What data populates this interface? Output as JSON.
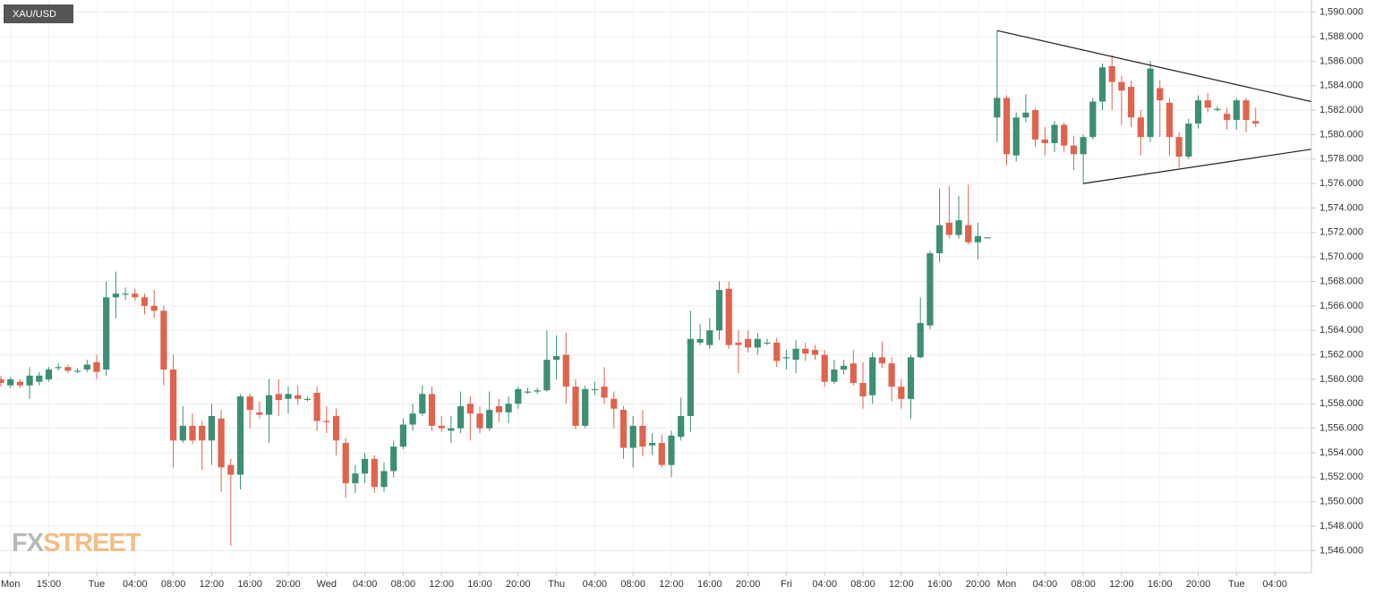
{
  "chart_data": {
    "type": "candlestick",
    "title": "XAU/USD",
    "watermark": [
      "FX",
      "STREET"
    ],
    "up_color": "#3c8f73",
    "down_color": "#e0634e",
    "grid": true,
    "ylim": [
      1544.2,
      1591
    ],
    "yticks": [
      {
        "value": 1546,
        "label": "1,546.000"
      },
      {
        "value": 1548,
        "label": "1,548.000"
      },
      {
        "value": 1550,
        "label": "1,550.000"
      },
      {
        "value": 1552,
        "label": "1,552.000"
      },
      {
        "value": 1554,
        "label": "1,554.000"
      },
      {
        "value": 1556,
        "label": "1,556.000"
      },
      {
        "value": 1558,
        "label": "1,558.000"
      },
      {
        "value": 1560,
        "label": "1,560.000"
      },
      {
        "value": 1562,
        "label": "1,562.000"
      },
      {
        "value": 1564,
        "label": "1,564.000"
      },
      {
        "value": 1566,
        "label": "1,566.000"
      },
      {
        "value": 1568,
        "label": "1,568.000"
      },
      {
        "value": 1570,
        "label": "1,570.000"
      },
      {
        "value": 1572,
        "label": "1,572.000"
      },
      {
        "value": 1574,
        "label": "1,574.000"
      },
      {
        "value": 1576,
        "label": "1,576.000"
      },
      {
        "value": 1578,
        "label": "1,578.000"
      },
      {
        "value": 1580,
        "label": "1,580.000"
      },
      {
        "value": 1582,
        "label": "1,582.000"
      },
      {
        "value": 1584,
        "label": "1,584.000"
      },
      {
        "value": 1586,
        "label": "1,586.000"
      },
      {
        "value": 1588,
        "label": "1,588.000"
      },
      {
        "value": 1590,
        "label": "1,590.000"
      }
    ],
    "categories": [
      null,
      "Mon",
      null,
      null,
      null,
      "15:00",
      null,
      null,
      null,
      null,
      "Tue",
      null,
      null,
      null,
      "04:00",
      null,
      null,
      null,
      "08:00",
      null,
      null,
      null,
      "12:00",
      null,
      null,
      null,
      "16:00",
      null,
      null,
      null,
      "20:00",
      null,
      null,
      null,
      "Wed",
      null,
      null,
      null,
      "04:00",
      null,
      null,
      null,
      "08:00",
      null,
      null,
      null,
      "12:00",
      null,
      null,
      null,
      "16:00",
      null,
      null,
      null,
      "20:00",
      null,
      null,
      null,
      "Thu",
      null,
      null,
      null,
      "04:00",
      null,
      null,
      null,
      "08:00",
      null,
      null,
      null,
      "12:00",
      null,
      null,
      null,
      "16:00",
      null,
      null,
      null,
      "20:00",
      null,
      null,
      null,
      "Fri",
      null,
      null,
      null,
      "04:00",
      null,
      null,
      null,
      "08:00",
      null,
      null,
      null,
      "12:00",
      null,
      null,
      null,
      "16:00",
      null,
      null,
      null,
      "20:00",
      null,
      null,
      "Mon",
      null,
      null,
      null,
      "04:00",
      null,
      null,
      null,
      "08:00",
      null,
      null,
      null,
      "12:00",
      null,
      null,
      null,
      "16:00",
      null,
      null,
      null,
      "20:00",
      null,
      null,
      null,
      "Tue",
      null,
      null,
      null,
      "04:00"
    ],
    "ohlc": [
      [
        1560.0,
        1560.3,
        1559.4,
        1559.7
      ],
      [
        1559.5,
        1560.2,
        1559.3,
        1560.0
      ],
      [
        1559.8,
        1560.0,
        1559.3,
        1559.5
      ],
      [
        1559.5,
        1561.0,
        1558.4,
        1560.3
      ],
      [
        1559.8,
        1560.6,
        1559.5,
        1560.3
      ],
      [
        1560.0,
        1561.0,
        1559.8,
        1560.8
      ],
      [
        1561.0,
        1561.3,
        1560.7,
        1561.0
      ],
      [
        1561.0,
        1561.2,
        1560.5,
        1560.7
      ],
      [
        1560.7,
        1560.9,
        1560.5,
        1560.7
      ],
      [
        1560.8,
        1561.6,
        1560.6,
        1561.2
      ],
      [
        1561.4,
        1562.0,
        1560.0,
        1560.6
      ],
      [
        1560.8,
        1568.0,
        1560.3,
        1566.7
      ],
      [
        1566.7,
        1568.8,
        1565.0,
        1567.0
      ],
      [
        1567.0,
        1567.5,
        1566.5,
        1567.0
      ],
      [
        1567.0,
        1567.4,
        1566.4,
        1566.7
      ],
      [
        1566.7,
        1567.0,
        1565.3,
        1566.0
      ],
      [
        1566.0,
        1567.3,
        1565.0,
        1565.6
      ],
      [
        1565.6,
        1566.0,
        1559.5,
        1560.8
      ],
      [
        1560.8,
        1562.0,
        1552.8,
        1555.0
      ],
      [
        1555.0,
        1557.8,
        1554.8,
        1556.2
      ],
      [
        1556.2,
        1557.2,
        1554.7,
        1555.0
      ],
      [
        1556.2,
        1556.6,
        1552.6,
        1555.0
      ],
      [
        1555.0,
        1558.0,
        1553.0,
        1557.0
      ],
      [
        1556.8,
        1557.5,
        1550.8,
        1552.8
      ],
      [
        1553.0,
        1553.5,
        1546.4,
        1552.2
      ],
      [
        1552.2,
        1558.8,
        1551.0,
        1558.6
      ],
      [
        1558.6,
        1558.8,
        1556.0,
        1557.5
      ],
      [
        1557.3,
        1558.2,
        1556.8,
        1557.1
      ],
      [
        1557.1,
        1560.0,
        1554.8,
        1558.7
      ],
      [
        1558.8,
        1560.0,
        1557.0,
        1558.3
      ],
      [
        1558.4,
        1559.4,
        1557.2,
        1558.8
      ],
      [
        1558.7,
        1559.5,
        1557.9,
        1558.4
      ],
      [
        1558.4,
        1558.6,
        1558.2,
        1558.4
      ],
      [
        1558.9,
        1559.4,
        1555.8,
        1556.6
      ],
      [
        1556.6,
        1557.8,
        1555.6,
        1556.5
      ],
      [
        1557.0,
        1557.6,
        1553.8,
        1555.0
      ],
      [
        1554.8,
        1555.2,
        1550.3,
        1551.5
      ],
      [
        1551.5,
        1553.0,
        1550.7,
        1552.3
      ],
      [
        1552.3,
        1554.0,
        1551.5,
        1553.5
      ],
      [
        1553.5,
        1553.8,
        1550.7,
        1551.2
      ],
      [
        1551.2,
        1553.2,
        1550.8,
        1552.5
      ],
      [
        1552.5,
        1555.0,
        1552.0,
        1554.5
      ],
      [
        1554.5,
        1556.8,
        1554.3,
        1556.3
      ],
      [
        1556.3,
        1558.0,
        1555.8,
        1557.2
      ],
      [
        1557.2,
        1559.5,
        1557.0,
        1558.8
      ],
      [
        1558.8,
        1559.4,
        1555.8,
        1556.2
      ],
      [
        1556.2,
        1557.0,
        1555.7,
        1556.0
      ],
      [
        1555.8,
        1557.0,
        1554.8,
        1556.0
      ],
      [
        1556.0,
        1559.0,
        1555.6,
        1557.8
      ],
      [
        1558.0,
        1558.6,
        1555.0,
        1557.2
      ],
      [
        1557.2,
        1557.8,
        1555.6,
        1556.0
      ],
      [
        1556.0,
        1559.0,
        1555.8,
        1557.5
      ],
      [
        1557.8,
        1558.4,
        1556.5,
        1557.3
      ],
      [
        1557.3,
        1558.6,
        1556.4,
        1558.0
      ],
      [
        1558.0,
        1559.4,
        1557.6,
        1559.2
      ],
      [
        1559.0,
        1559.3,
        1558.8,
        1559.0
      ],
      [
        1559.0,
        1559.3,
        1558.8,
        1559.1
      ],
      [
        1559.1,
        1564.0,
        1559.0,
        1561.6
      ],
      [
        1561.6,
        1563.6,
        1560.0,
        1561.9
      ],
      [
        1562.0,
        1563.8,
        1558.0,
        1559.4
      ],
      [
        1559.4,
        1560.0,
        1555.9,
        1556.2
      ],
      [
        1556.2,
        1559.5,
        1556.0,
        1559.2
      ],
      [
        1559.2,
        1559.8,
        1558.7,
        1559.2
      ],
      [
        1559.4,
        1561.0,
        1558.0,
        1558.5
      ],
      [
        1558.4,
        1559.0,
        1556.0,
        1557.6
      ],
      [
        1557.5,
        1557.8,
        1553.5,
        1554.4
      ],
      [
        1554.4,
        1557.0,
        1552.8,
        1556.2
      ],
      [
        1556.2,
        1557.5,
        1553.7,
        1554.5
      ],
      [
        1554.6,
        1555.6,
        1553.8,
        1554.8
      ],
      [
        1554.8,
        1555.5,
        1552.8,
        1553.0
      ],
      [
        1553.0,
        1555.8,
        1552.0,
        1555.4
      ],
      [
        1555.3,
        1558.5,
        1555.0,
        1557.0
      ],
      [
        1557.0,
        1565.6,
        1555.7,
        1563.3
      ],
      [
        1563.0,
        1564.5,
        1562.8,
        1563.3
      ],
      [
        1562.8,
        1565.0,
        1562.5,
        1564.0
      ],
      [
        1564.0,
        1568.0,
        1563.2,
        1567.3
      ],
      [
        1567.4,
        1568.0,
        1562.5,
        1562.8
      ],
      [
        1563.0,
        1564.0,
        1560.5,
        1562.8
      ],
      [
        1563.3,
        1564.0,
        1562.2,
        1562.6
      ],
      [
        1562.6,
        1563.8,
        1562.0,
        1563.3
      ],
      [
        1563.0,
        1563.3,
        1562.8,
        1563.0
      ],
      [
        1563.0,
        1563.4,
        1561.0,
        1561.5
      ],
      [
        1561.8,
        1562.4,
        1560.8,
        1561.8
      ],
      [
        1561.6,
        1563.2,
        1560.5,
        1562.5
      ],
      [
        1562.5,
        1563.0,
        1561.5,
        1562.1
      ],
      [
        1562.4,
        1562.8,
        1561.6,
        1562.0
      ],
      [
        1562.0,
        1562.4,
        1559.4,
        1559.8
      ],
      [
        1559.8,
        1561.6,
        1559.6,
        1560.8
      ],
      [
        1560.8,
        1561.6,
        1560.4,
        1561.1
      ],
      [
        1561.3,
        1562.4,
        1559.5,
        1559.7
      ],
      [
        1559.7,
        1561.4,
        1557.6,
        1558.6
      ],
      [
        1558.7,
        1562.2,
        1558.0,
        1561.8
      ],
      [
        1561.8,
        1563.1,
        1560.9,
        1561.3
      ],
      [
        1561.3,
        1561.8,
        1558.2,
        1559.4
      ],
      [
        1559.4,
        1560.0,
        1557.6,
        1558.4
      ],
      [
        1558.4,
        1562.0,
        1556.8,
        1561.8
      ],
      [
        1561.8,
        1566.7,
        1561.7,
        1564.6
      ],
      [
        1564.4,
        1570.5,
        1564.1,
        1570.3
      ],
      [
        1570.3,
        1575.6,
        1569.6,
        1572.6
      ],
      [
        1572.8,
        1575.8,
        1571.5,
        1571.8
      ],
      [
        1571.8,
        1575.0,
        1571.5,
        1573.0
      ],
      [
        1572.6,
        1575.9,
        1571.0,
        1571.2
      ],
      [
        1571.2,
        1572.8,
        1569.8,
        1571.7
      ],
      [
        1571.6,
        1571.6,
        1571.6,
        1571.6
      ],
      [
        1581.4,
        1588.5,
        1579.4,
        1583.0
      ],
      [
        1583.0,
        1583.2,
        1577.5,
        1578.4
      ],
      [
        1578.3,
        1581.8,
        1577.8,
        1581.4
      ],
      [
        1581.4,
        1583.3,
        1581.0,
        1581.8
      ],
      [
        1582.0,
        1582.2,
        1579.0,
        1579.6
      ],
      [
        1579.6,
        1580.6,
        1578.3,
        1579.3
      ],
      [
        1579.3,
        1581.1,
        1578.6,
        1580.8
      ],
      [
        1580.8,
        1581.0,
        1578.6,
        1579.1
      ],
      [
        1579.1,
        1579.9,
        1577.1,
        1578.4
      ],
      [
        1578.4,
        1580.0,
        1576.0,
        1579.8
      ],
      [
        1579.8,
        1583.0,
        1579.6,
        1582.7
      ],
      [
        1582.7,
        1585.8,
        1582.0,
        1585.5
      ],
      [
        1585.6,
        1586.5,
        1582.0,
        1584.3
      ],
      [
        1584.3,
        1584.8,
        1580.8,
        1583.6
      ],
      [
        1583.9,
        1584.4,
        1580.6,
        1581.4
      ],
      [
        1581.4,
        1582.0,
        1578.3,
        1579.8
      ],
      [
        1579.8,
        1586.0,
        1579.4,
        1585.4
      ],
      [
        1583.8,
        1584.4,
        1579.8,
        1582.8
      ],
      [
        1582.6,
        1583.0,
        1578.3,
        1579.8
      ],
      [
        1579.8,
        1580.2,
        1577.3,
        1578.2
      ],
      [
        1578.2,
        1581.3,
        1578.0,
        1580.9
      ],
      [
        1580.9,
        1583.2,
        1580.5,
        1582.8
      ],
      [
        1582.8,
        1583.4,
        1581.8,
        1582.2
      ],
      [
        1582.1,
        1582.3,
        1581.9,
        1582.1
      ],
      [
        1581.7,
        1582.2,
        1580.4,
        1581.2
      ],
      [
        1581.2,
        1583.0,
        1580.4,
        1582.8
      ],
      [
        1582.8,
        1583.0,
        1580.2,
        1581.2
      ],
      [
        1581.1,
        1582.2,
        1580.6,
        1580.9
      ],
      null,
      null
    ],
    "trendlines": [
      {
        "color": "#222222",
        "points": [
          [
            104,
            1588.5
          ],
          [
            136.8,
            1582.7
          ]
        ]
      },
      {
        "color": "#222222",
        "points": [
          [
            113,
            1576.0
          ],
          [
            136.8,
            1578.8
          ]
        ]
      }
    ]
  }
}
